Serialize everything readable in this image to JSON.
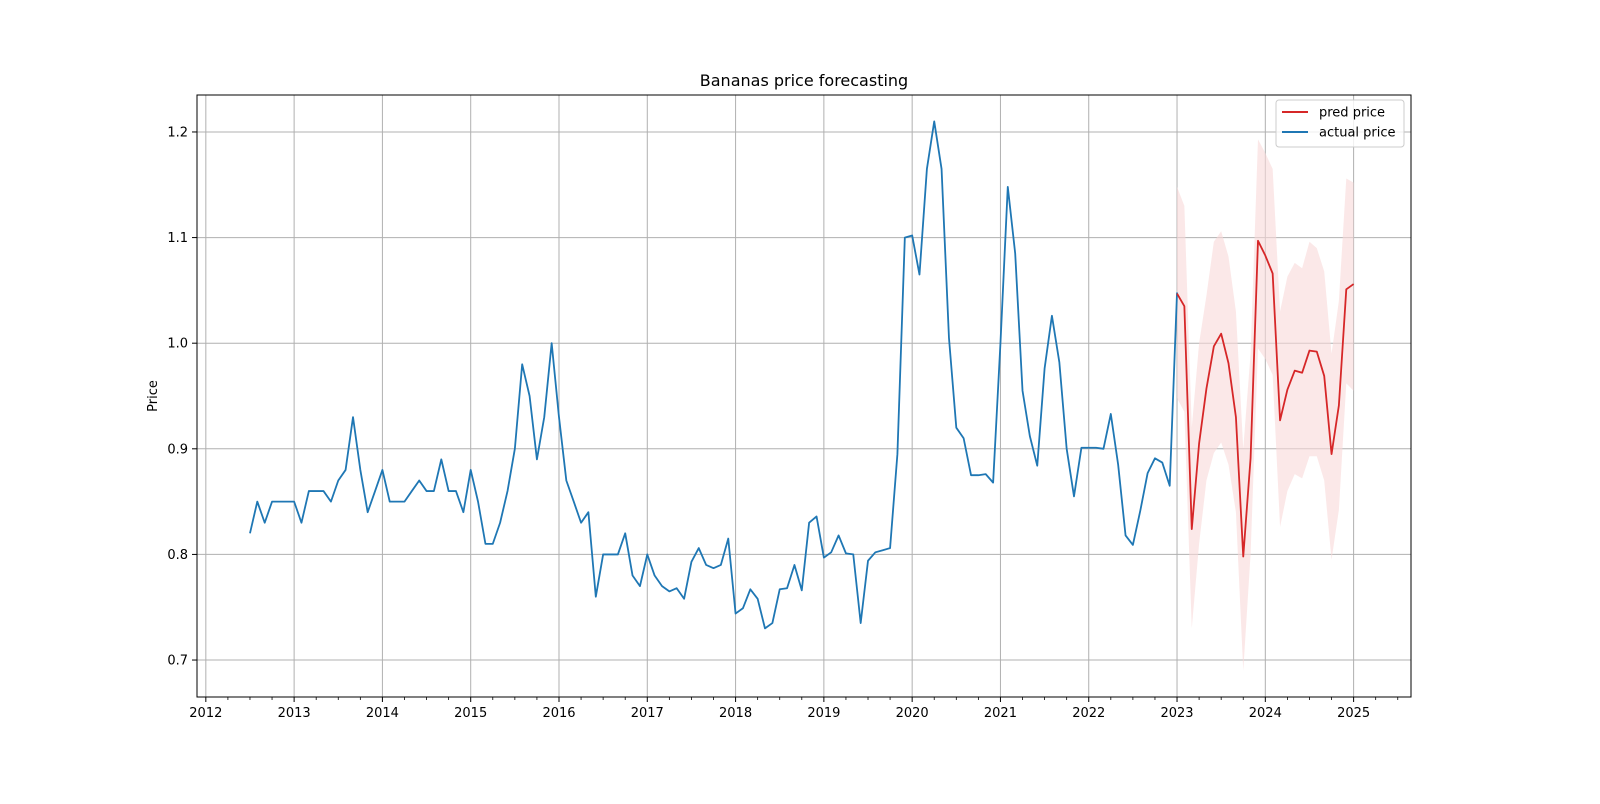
{
  "chart_data": {
    "type": "line",
    "title": "Bananas price forecasting",
    "xlabel": "",
    "ylabel": "Price",
    "xlim": [
      2011.9,
      2025.65
    ],
    "ylim": [
      0.665,
      1.235
    ],
    "grid": true,
    "legend_position": "top-right",
    "x_ticks": [
      "2012",
      "2013",
      "2014",
      "2015",
      "2016",
      "2017",
      "2018",
      "2019",
      "2020",
      "2021",
      "2022",
      "2023",
      "2024",
      "2025"
    ],
    "y_ticks": [
      "0.7",
      "0.8",
      "0.9",
      "1.0",
      "1.1",
      "1.2"
    ],
    "colors": {
      "actual": "#1f77b4",
      "pred": "#d62728",
      "band": "#f8d9d9",
      "grid": "#b0b0b0"
    },
    "series": [
      {
        "name": "actual price",
        "color": "#1f77b4",
        "x": [
          2012.5,
          2012.583,
          2012.667,
          2012.75,
          2012.833,
          2012.917,
          2013.0,
          2013.083,
          2013.167,
          2013.25,
          2013.333,
          2013.417,
          2013.5,
          2013.583,
          2013.667,
          2013.75,
          2013.833,
          2013.917,
          2014.0,
          2014.083,
          2014.167,
          2014.25,
          2014.333,
          2014.417,
          2014.5,
          2014.583,
          2014.667,
          2014.75,
          2014.833,
          2014.917,
          2015.0,
          2015.083,
          2015.167,
          2015.25,
          2015.333,
          2015.417,
          2015.5,
          2015.583,
          2015.667,
          2015.75,
          2015.833,
          2015.917,
          2016.0,
          2016.083,
          2016.167,
          2016.25,
          2016.333,
          2016.417,
          2016.5,
          2016.583,
          2016.667,
          2016.75,
          2016.833,
          2016.917,
          2017.0,
          2017.083,
          2017.167,
          2017.25,
          2017.333,
          2017.417,
          2017.5,
          2017.583,
          2017.667,
          2017.75,
          2017.833,
          2017.917,
          2018.0,
          2018.083,
          2018.167,
          2018.25,
          2018.333,
          2018.417,
          2018.5,
          2018.583,
          2018.667,
          2018.75,
          2018.833,
          2018.917,
          2019.0,
          2019.083,
          2019.167,
          2019.25,
          2019.333,
          2019.417,
          2019.5,
          2019.583,
          2019.667,
          2019.75,
          2019.833,
          2019.917,
          2020.0,
          2020.083,
          2020.167,
          2020.25,
          2020.333,
          2020.417,
          2020.5,
          2020.583,
          2020.667,
          2020.75,
          2020.833,
          2020.917,
          2021.0,
          2021.083,
          2021.167,
          2021.25,
          2021.333,
          2021.417,
          2021.5,
          2021.583,
          2021.667,
          2021.75,
          2021.833,
          2021.917,
          2022.0,
          2022.083,
          2022.167,
          2022.25,
          2022.333,
          2022.417,
          2022.5,
          2022.583,
          2022.667,
          2022.75,
          2022.833,
          2022.917,
          2023.0
        ],
        "values": [
          0.82,
          0.85,
          0.83,
          0.85,
          0.85,
          0.85,
          0.85,
          0.83,
          0.86,
          0.86,
          0.86,
          0.85,
          0.87,
          0.88,
          0.93,
          0.88,
          0.84,
          0.86,
          0.88,
          0.85,
          0.85,
          0.85,
          0.86,
          0.87,
          0.86,
          0.86,
          0.89,
          0.86,
          0.86,
          0.84,
          0.88,
          0.85,
          0.81,
          0.81,
          0.83,
          0.86,
          0.9,
          0.98,
          0.95,
          0.89,
          0.93,
          1.0,
          0.93,
          0.87,
          0.85,
          0.83,
          0.84,
          0.76,
          0.8,
          0.8,
          0.8,
          0.82,
          0.78,
          0.77,
          0.8,
          0.78,
          0.77,
          0.765,
          0.768,
          0.758,
          0.793,
          0.806,
          0.79,
          0.787,
          0.79,
          0.815,
          0.744,
          0.749,
          0.767,
          0.758,
          0.73,
          0.735,
          0.767,
          0.768,
          0.79,
          0.766,
          0.83,
          0.836,
          0.797,
          0.802,
          0.818,
          0.801,
          0.8,
          0.735,
          0.794,
          0.802,
          0.804,
          0.806,
          0.895,
          1.1,
          1.102,
          1.065,
          1.165,
          1.21,
          1.165,
          1.005,
          0.92,
          0.91,
          0.875,
          0.875,
          0.876,
          0.868,
          1.0,
          1.148,
          1.085,
          0.955,
          0.912,
          0.884,
          0.976,
          1.026,
          0.982,
          0.9,
          0.855,
          0.901,
          0.901,
          0.901,
          0.9,
          0.933,
          0.885,
          0.818,
          0.809,
          0.841,
          0.877,
          0.891,
          0.887,
          0.865,
          1.048
        ]
      },
      {
        "name": "pred price",
        "color": "#d62728",
        "x": [
          2023.0,
          2023.083,
          2023.167,
          2023.25,
          2023.333,
          2023.417,
          2023.5,
          2023.583,
          2023.667,
          2023.75,
          2023.833,
          2023.917,
          2024.0,
          2024.083,
          2024.167,
          2024.25,
          2024.333,
          2024.417,
          2024.5,
          2024.583,
          2024.667,
          2024.75,
          2024.833,
          2024.917,
          2025.0
        ],
        "values": [
          1.047,
          1.035,
          0.824,
          0.905,
          0.957,
          0.997,
          1.009,
          0.981,
          0.93,
          0.798,
          0.891,
          1.097,
          1.083,
          1.066,
          0.927,
          0.956,
          0.974,
          0.972,
          0.993,
          0.992,
          0.969,
          0.895,
          0.941,
          1.051,
          1.056
        ],
        "lower": [
          0.948,
          0.935,
          0.73,
          0.81,
          0.87,
          0.896,
          0.906,
          0.885,
          0.84,
          0.69,
          0.8,
          0.995,
          0.985,
          0.97,
          0.826,
          0.86,
          0.876,
          0.872,
          0.893,
          0.893,
          0.87,
          0.795,
          0.842,
          0.962,
          0.955
        ],
        "upper": [
          1.148,
          1.13,
          0.92,
          1.0,
          1.045,
          1.096,
          1.106,
          1.082,
          1.03,
          0.9,
          0.99,
          1.193,
          1.18,
          1.165,
          1.03,
          1.063,
          1.076,
          1.071,
          1.096,
          1.09,
          1.068,
          0.99,
          1.04,
          1.156,
          1.152
        ]
      }
    ]
  }
}
